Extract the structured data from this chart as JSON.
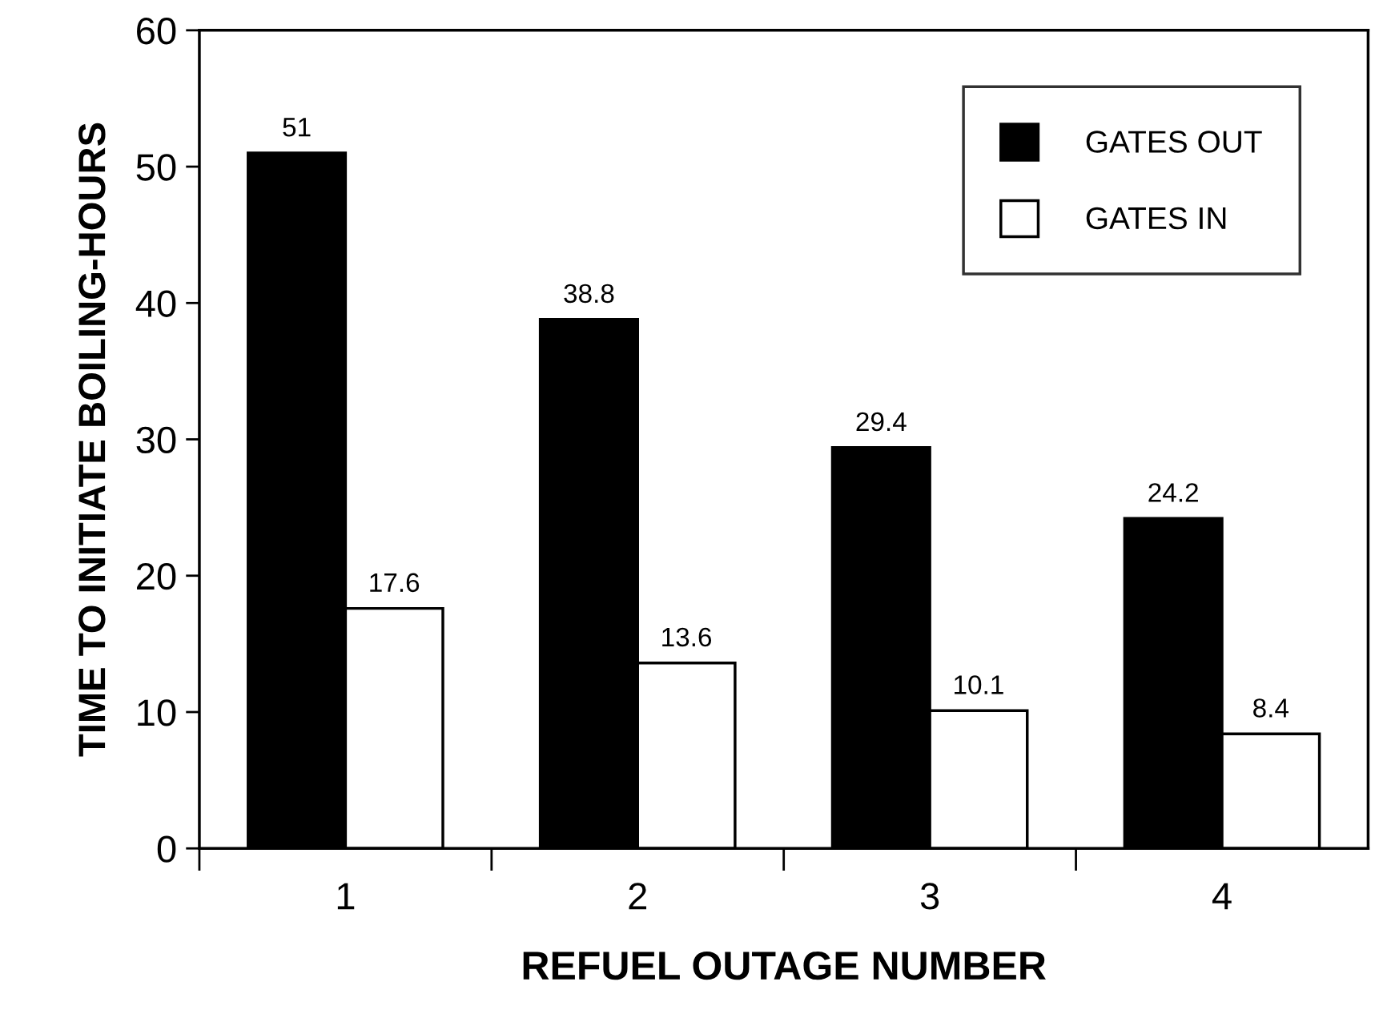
{
  "chart_data": {
    "type": "bar",
    "xlabel": "REFUEL OUTAGE NUMBER",
    "ylabel": "TIME TO INITIATE BOILING-HOURS",
    "categories": [
      "1",
      "2",
      "3",
      "4"
    ],
    "series": [
      {
        "name": "GATES OUT",
        "color": "#000000",
        "values": [
          51,
          38.8,
          29.4,
          24.2
        ]
      },
      {
        "name": "GATES IN",
        "color": "#ffffff",
        "values": [
          17.6,
          13.6,
          10.1,
          8.4
        ]
      }
    ],
    "ylim": [
      0,
      60
    ],
    "yticks": [
      0,
      10,
      20,
      30,
      40,
      50,
      60
    ],
    "data_labels": true,
    "legend": "top right",
    "grid": false
  }
}
